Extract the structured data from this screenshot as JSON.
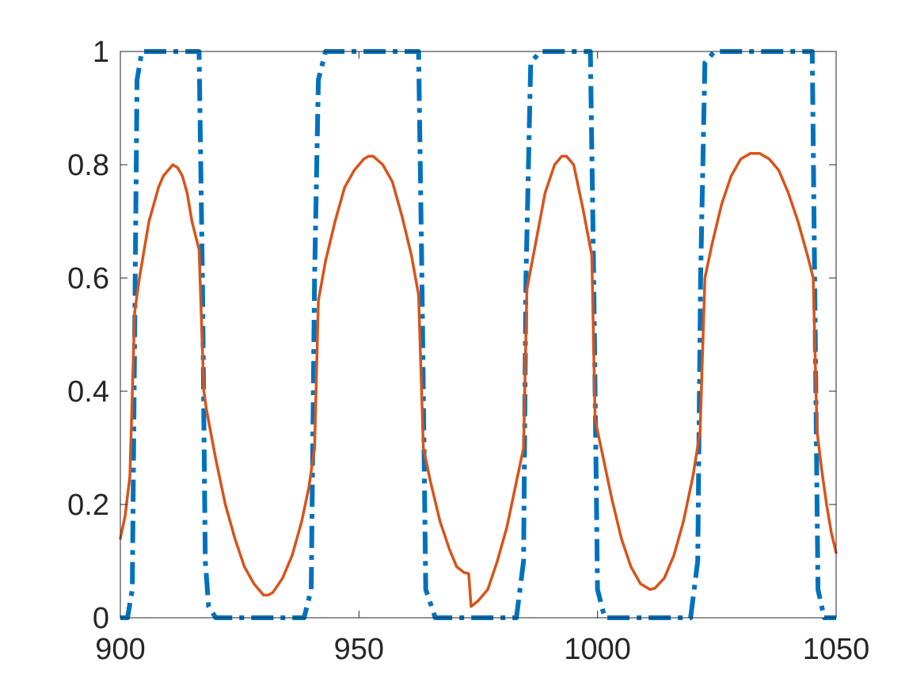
{
  "chart_data": {
    "type": "line",
    "title": "",
    "xlabel": "",
    "ylabel": "",
    "xlim": [
      900,
      1050
    ],
    "ylim": [
      0,
      1
    ],
    "grid": false,
    "x_ticks": [
      "900",
      "950",
      "1000",
      "1050"
    ],
    "y_ticks": [
      "0",
      "0.2",
      "0.4",
      "0.6",
      "0.8",
      "1"
    ],
    "series": [
      {
        "style": "dash-dot",
        "color": "#0072BD",
        "points": [
          [
            900,
            0.0
          ],
          [
            901.5,
            0.0
          ],
          [
            902.5,
            0.05
          ],
          [
            903.0,
            0.5
          ],
          [
            903.5,
            0.95
          ],
          [
            904.5,
            1.0
          ],
          [
            916.5,
            1.0
          ],
          [
            917.2,
            0.6
          ],
          [
            917.8,
            0.1
          ],
          [
            918.5,
            0.02
          ],
          [
            920,
            0.0
          ],
          [
            938.5,
            0.0
          ],
          [
            940,
            0.05
          ],
          [
            940.7,
            0.6
          ],
          [
            941.5,
            0.95
          ],
          [
            943,
            1.0
          ],
          [
            962.5,
            1.0
          ],
          [
            963.2,
            0.6
          ],
          [
            964.0,
            0.05
          ],
          [
            966,
            0.0
          ],
          [
            983,
            0.0
          ],
          [
            984.5,
            0.1
          ],
          [
            985.0,
            0.6
          ],
          [
            986,
            0.98
          ],
          [
            988,
            1.0
          ],
          [
            998.5,
            1.0
          ],
          [
            999.2,
            0.6
          ],
          [
            1000.0,
            0.05
          ],
          [
            1001.5,
            0.0
          ],
          [
            1019.5,
            0.0
          ],
          [
            1021,
            0.1
          ],
          [
            1021.6,
            0.6
          ],
          [
            1022.5,
            0.98
          ],
          [
            1024.5,
            1.0
          ],
          [
            1045,
            1.0
          ],
          [
            1045.5,
            0.6
          ],
          [
            1046.2,
            0.05
          ],
          [
            1047.5,
            0.0
          ],
          [
            1050,
            0.0
          ]
        ]
      },
      {
        "style": "solid",
        "color": "#D95319",
        "points": [
          [
            900,
            0.14
          ],
          [
            901,
            0.18
          ],
          [
            902,
            0.25
          ],
          [
            903,
            0.54
          ],
          [
            904,
            0.6
          ],
          [
            905,
            0.65
          ],
          [
            906,
            0.7
          ],
          [
            907,
            0.73
          ],
          [
            908,
            0.76
          ],
          [
            909,
            0.78
          ],
          [
            910,
            0.79
          ],
          [
            911,
            0.8
          ],
          [
            912,
            0.795
          ],
          [
            913,
            0.78
          ],
          [
            914,
            0.75
          ],
          [
            915,
            0.7
          ],
          [
            916.5,
            0.65
          ],
          [
            917.5,
            0.4
          ],
          [
            918,
            0.37
          ],
          [
            920,
            0.28
          ],
          [
            922,
            0.2
          ],
          [
            924,
            0.14
          ],
          [
            926,
            0.09
          ],
          [
            928,
            0.06
          ],
          [
            930,
            0.04
          ],
          [
            931,
            0.04
          ],
          [
            932,
            0.045
          ],
          [
            934,
            0.07
          ],
          [
            936,
            0.11
          ],
          [
            938,
            0.17
          ],
          [
            939.5,
            0.23
          ],
          [
            940.7,
            0.3
          ],
          [
            941.5,
            0.56
          ],
          [
            943,
            0.63
          ],
          [
            945,
            0.7
          ],
          [
            947,
            0.76
          ],
          [
            949,
            0.79
          ],
          [
            951,
            0.81
          ],
          [
            952,
            0.815
          ],
          [
            953,
            0.815
          ],
          [
            955,
            0.8
          ],
          [
            957,
            0.77
          ],
          [
            959,
            0.71
          ],
          [
            961,
            0.64
          ],
          [
            962.5,
            0.57
          ],
          [
            963.5,
            0.3
          ],
          [
            965,
            0.24
          ],
          [
            967,
            0.17
          ],
          [
            969,
            0.12
          ],
          [
            970.5,
            0.09
          ],
          [
            972,
            0.08
          ],
          [
            973,
            0.078
          ],
          [
            973.5,
            0.02
          ],
          [
            975,
            0.03
          ],
          [
            977,
            0.05
          ],
          [
            979,
            0.1
          ],
          [
            981,
            0.16
          ],
          [
            983,
            0.24
          ],
          [
            984.5,
            0.3
          ],
          [
            985.2,
            0.58
          ],
          [
            987,
            0.66
          ],
          [
            989,
            0.75
          ],
          [
            991,
            0.8
          ],
          [
            992.5,
            0.815
          ],
          [
            993.5,
            0.815
          ],
          [
            995,
            0.8
          ],
          [
            997,
            0.72
          ],
          [
            998.8,
            0.64
          ],
          [
            999.5,
            0.35
          ],
          [
            1001,
            0.29
          ],
          [
            1003,
            0.21
          ],
          [
            1005,
            0.14
          ],
          [
            1007,
            0.09
          ],
          [
            1009,
            0.06
          ],
          [
            1011,
            0.05
          ],
          [
            1012,
            0.052
          ],
          [
            1014,
            0.07
          ],
          [
            1016,
            0.11
          ],
          [
            1018,
            0.17
          ],
          [
            1020,
            0.25
          ],
          [
            1021.5,
            0.33
          ],
          [
            1022.5,
            0.6
          ],
          [
            1024,
            0.66
          ],
          [
            1026,
            0.73
          ],
          [
            1028,
            0.78
          ],
          [
            1030,
            0.81
          ],
          [
            1032,
            0.82
          ],
          [
            1034,
            0.82
          ],
          [
            1036,
            0.81
          ],
          [
            1038,
            0.79
          ],
          [
            1040,
            0.75
          ],
          [
            1042,
            0.7
          ],
          [
            1044,
            0.64
          ],
          [
            1045.2,
            0.6
          ],
          [
            1046,
            0.33
          ],
          [
            1047,
            0.26
          ],
          [
            1048,
            0.2
          ],
          [
            1049,
            0.15
          ],
          [
            1050,
            0.115
          ]
        ]
      }
    ]
  }
}
